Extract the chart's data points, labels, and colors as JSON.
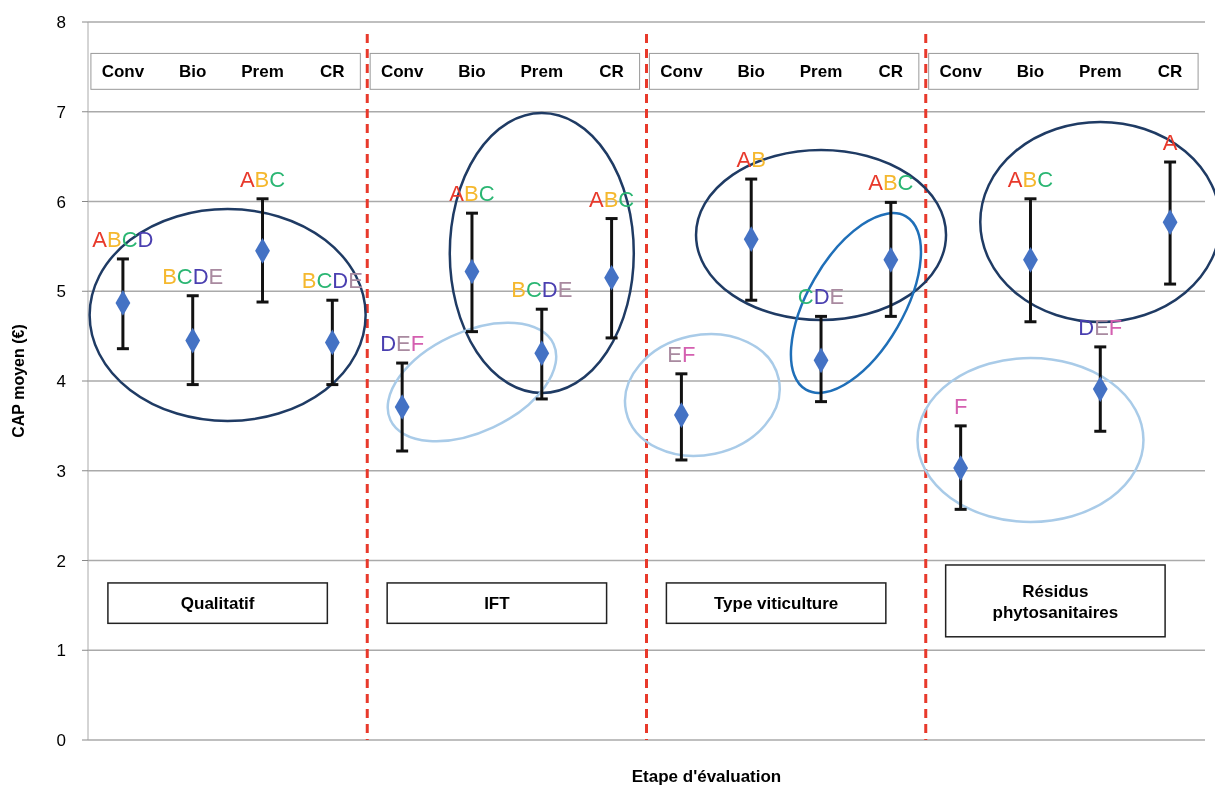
{
  "chart_data": {
    "type": "scatter",
    "xlabel": "Etape d'évaluation",
    "ylabel": "CAP moyen (€)",
    "categories": [
      null,
      null,
      null,
      null,
      null,
      null,
      null,
      null,
      null,
      null,
      null,
      null,
      null,
      null,
      null,
      null
    ],
    "series": [
      {
        "color": "#4472c4",
        "values": [
          4.87,
          4.45,
          5.45,
          4.43,
          3.71,
          5.22,
          4.31,
          5.15,
          3.62,
          5.58,
          4.23,
          5.35,
          3.03,
          5.35,
          3.91,
          5.77
        ],
        "errors": [
          [
            4.36,
            5.36
          ],
          [
            3.96,
            4.95
          ],
          [
            4.88,
            6.03
          ],
          [
            3.96,
            4.9
          ],
          [
            3.22,
            4.2
          ],
          [
            4.55,
            5.87
          ],
          [
            3.8,
            4.8
          ],
          [
            4.48,
            5.81
          ],
          [
            3.12,
            4.08
          ],
          [
            4.9,
            6.25
          ],
          [
            3.77,
            4.72
          ],
          [
            4.72,
            5.99
          ],
          [
            2.57,
            3.5
          ],
          [
            4.66,
            6.03
          ],
          [
            3.44,
            4.38
          ],
          [
            5.08,
            6.44
          ]
        ]
      }
    ],
    "ylim": [
      0,
      8
    ],
    "yticks": [
      0,
      1,
      2,
      3,
      4,
      5,
      6,
      7,
      8
    ],
    "grid": "y",
    "marker": "diamond",
    "annotations": [
      "ABCD",
      "BCDE",
      "ABC",
      "BCDE",
      "DEF",
      "ABC",
      "BCDE",
      "ABC",
      "EF",
      "AB",
      "CDE",
      "ABC",
      "F",
      "ABC",
      "DEF",
      "A",
      "Conv",
      "Bio",
      "Prem",
      "CR",
      "Conv",
      "Bio",
      "Prem",
      "CR",
      "Conv",
      "Bio",
      "Prem",
      "CR",
      "Conv",
      "Bio",
      "Prem",
      "CR",
      "Qualitatif",
      "IFT",
      "Type viticulture",
      "Résidus phytosanitaires"
    ]
  }
}
